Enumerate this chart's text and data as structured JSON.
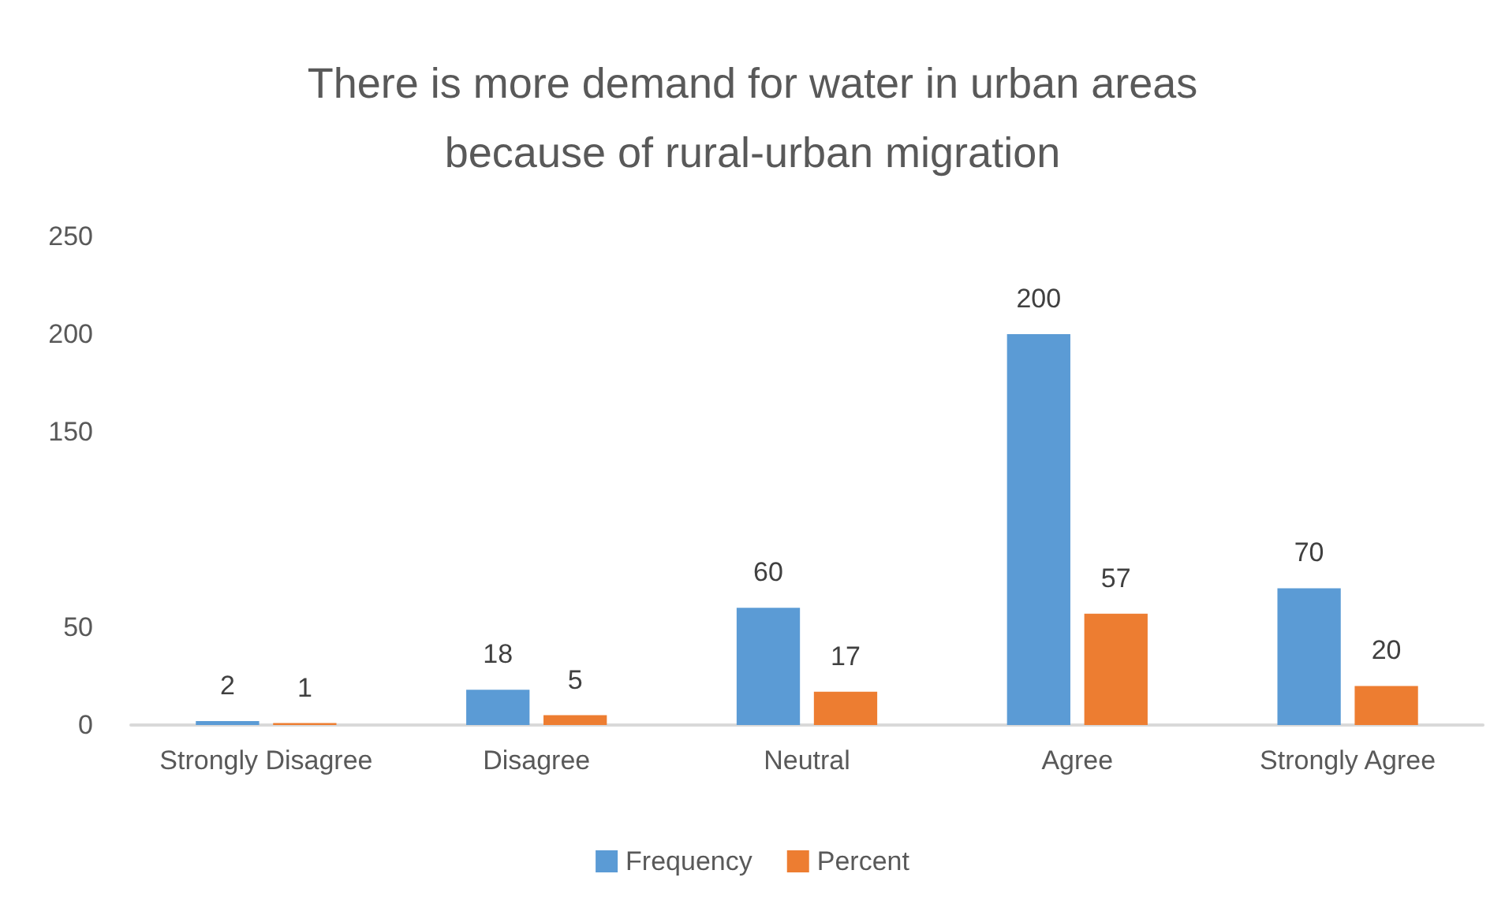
{
  "chart_data": {
    "type": "bar",
    "title": "There is more demand for water in urban areas\nbecause of rural-urban migration",
    "categories": [
      "Strongly Disagree",
      "Disagree",
      "Neutral",
      "Agree",
      "Strongly Agree"
    ],
    "series": [
      {
        "name": "Frequency",
        "color": "#5b9bd5",
        "values": [
          2,
          18,
          60,
          200,
          70
        ]
      },
      {
        "name": "Percent",
        "color": "#ed7d31",
        "values": [
          1,
          5,
          17,
          57,
          20
        ]
      }
    ],
    "ylim": [
      0,
      250
    ],
    "yticks": [
      0,
      50,
      150,
      200,
      250
    ],
    "grid": false,
    "legend": "bottom",
    "data_labels": true
  }
}
